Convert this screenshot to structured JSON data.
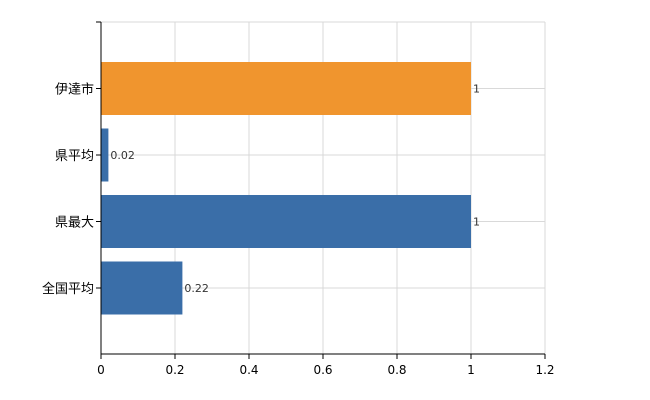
{
  "chart_data": {
    "type": "bar",
    "orientation": "horizontal",
    "categories": [
      "伊達市",
      "県平均",
      "県最大",
      "全国平均"
    ],
    "values": [
      1,
      0.02,
      1,
      0.22
    ],
    "value_labels": [
      "1",
      "0.02",
      "1",
      "0.22"
    ],
    "bar_colors": [
      "#f0952e",
      "#3a6ea8",
      "#3a6ea8",
      "#3a6ea8"
    ],
    "xlim": [
      0,
      1.2
    ],
    "x_ticks": [
      0,
      0.2,
      0.4,
      0.6,
      0.8,
      1,
      1.2
    ],
    "x_tick_labels": [
      "0",
      "0.2",
      "0.4",
      "0.6",
      "0.8",
      "1",
      "1.2"
    ],
    "grid": true,
    "title": "",
    "xlabel": "",
    "ylabel": ""
  }
}
